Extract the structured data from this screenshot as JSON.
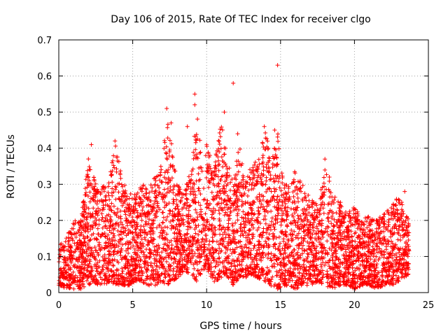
{
  "chart_data": {
    "type": "scatter",
    "title": "Day 106 of 2015, Rate Of TEC Index for receiver clgo",
    "xlabel": "GPS time / hours",
    "ylabel": "ROTI / TECUs",
    "xlim": [
      0,
      25
    ],
    "ylim": [
      0,
      0.7
    ],
    "grid": true,
    "marker": "+",
    "marker_color": "#ff0000",
    "xticks": [
      0,
      5,
      10,
      15,
      20,
      25
    ],
    "yticks": [
      0,
      0.1,
      0.2,
      0.3,
      0.4,
      0.5,
      0.6,
      0.7
    ],
    "xtick_labels": [
      "0",
      "5",
      "10",
      "15",
      "20",
      "25"
    ],
    "ytick_labels": [
      "0",
      "0.1",
      "0.2",
      "0.3",
      "0.4",
      "0.5",
      "0.6",
      "0.7"
    ],
    "envelope": {
      "x": [
        0.0,
        0.5,
        1.0,
        1.5,
        2.0,
        2.3,
        2.7,
        3.0,
        3.5,
        3.9,
        4.3,
        4.8,
        5.2,
        5.6,
        6.0,
        6.5,
        7.0,
        7.3,
        7.6,
        8.0,
        8.5,
        9.0,
        9.3,
        9.7,
        10.0,
        10.5,
        11.0,
        11.3,
        11.8,
        12.2,
        12.6,
        13.0,
        13.5,
        14.0,
        14.3,
        14.8,
        15.2,
        15.6,
        16.0,
        16.5,
        17.0,
        17.5,
        18.0,
        18.5,
        19.0,
        19.5,
        20.0,
        20.5,
        21.0,
        21.5,
        22.0,
        22.5,
        23.0,
        23.7
      ],
      "upper": [
        0.13,
        0.15,
        0.2,
        0.2,
        0.38,
        0.34,
        0.28,
        0.3,
        0.34,
        0.42,
        0.3,
        0.3,
        0.27,
        0.3,
        0.3,
        0.32,
        0.36,
        0.5,
        0.42,
        0.3,
        0.28,
        0.35,
        0.52,
        0.38,
        0.42,
        0.35,
        0.48,
        0.4,
        0.3,
        0.42,
        0.3,
        0.35,
        0.38,
        0.45,
        0.38,
        0.45,
        0.3,
        0.3,
        0.34,
        0.3,
        0.26,
        0.25,
        0.35,
        0.28,
        0.26,
        0.22,
        0.24,
        0.2,
        0.22,
        0.2,
        0.22,
        0.25,
        0.27,
        0.2
      ],
      "lower": [
        0.02,
        0.01,
        0.01,
        0.01,
        0.02,
        0.03,
        0.02,
        0.02,
        0.03,
        0.02,
        0.02,
        0.02,
        0.03,
        0.03,
        0.02,
        0.02,
        0.03,
        0.02,
        0.03,
        0.04,
        0.06,
        0.05,
        0.03,
        0.05,
        0.06,
        0.03,
        0.04,
        0.05,
        0.02,
        0.04,
        0.04,
        0.05,
        0.04,
        0.03,
        0.02,
        0.01,
        0.02,
        0.02,
        0.01,
        0.02,
        0.02,
        0.03,
        0.02,
        0.01,
        0.02,
        0.02,
        0.01,
        0.02,
        0.02,
        0.01,
        0.02,
        0.02,
        0.03,
        0.05
      ]
    },
    "point_count": 4800,
    "outliers": [
      {
        "x": 2.2,
        "y": 0.41
      },
      {
        "x": 3.8,
        "y": 0.42
      },
      {
        "x": 7.3,
        "y": 0.51
      },
      {
        "x": 7.6,
        "y": 0.47
      },
      {
        "x": 8.7,
        "y": 0.46
      },
      {
        "x": 9.2,
        "y": 0.55
      },
      {
        "x": 9.2,
        "y": 0.52
      },
      {
        "x": 11.2,
        "y": 0.5
      },
      {
        "x": 11.8,
        "y": 0.58
      },
      {
        "x": 12.1,
        "y": 0.44
      },
      {
        "x": 13.9,
        "y": 0.46
      },
      {
        "x": 14.6,
        "y": 0.45
      },
      {
        "x": 14.8,
        "y": 0.63
      },
      {
        "x": 18.0,
        "y": 0.37
      },
      {
        "x": 18.3,
        "y": 0.32
      },
      {
        "x": 23.4,
        "y": 0.28
      }
    ]
  }
}
